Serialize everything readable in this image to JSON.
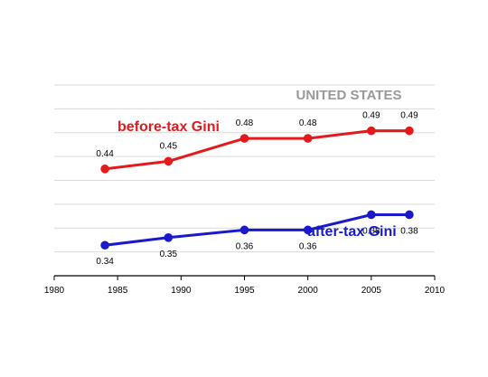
{
  "chart_data": {
    "type": "line",
    "title": "UNITED STATES",
    "xlabel": "",
    "ylabel": "",
    "xlim": [
      1980,
      2010
    ],
    "ylim": [
      0.3,
      0.55
    ],
    "xticks": [
      "1980",
      "1985",
      "1990",
      "1995",
      "2000",
      "2005",
      "2010"
    ],
    "grid": true,
    "series": [
      {
        "name": "before-tax Gini",
        "color": "#e31a1c",
        "x": [
          1984,
          1989,
          1995,
          2000,
          2005,
          2008
        ],
        "values": [
          0.44,
          0.45,
          0.48,
          0.48,
          0.49,
          0.49
        ],
        "labels": [
          "0.44",
          "0.45",
          "0.48",
          "0.48",
          "0.49",
          "0.49"
        ]
      },
      {
        "name": "after-tax Gini",
        "color": "#1a1acc",
        "x": [
          1984,
          1989,
          1995,
          2000,
          2005,
          2008
        ],
        "values": [
          0.34,
          0.35,
          0.36,
          0.36,
          0.38,
          0.38
        ],
        "labels": [
          "0.34",
          "0.35",
          "0.36",
          "0.36",
          "0.38",
          "0.38"
        ]
      }
    ]
  }
}
